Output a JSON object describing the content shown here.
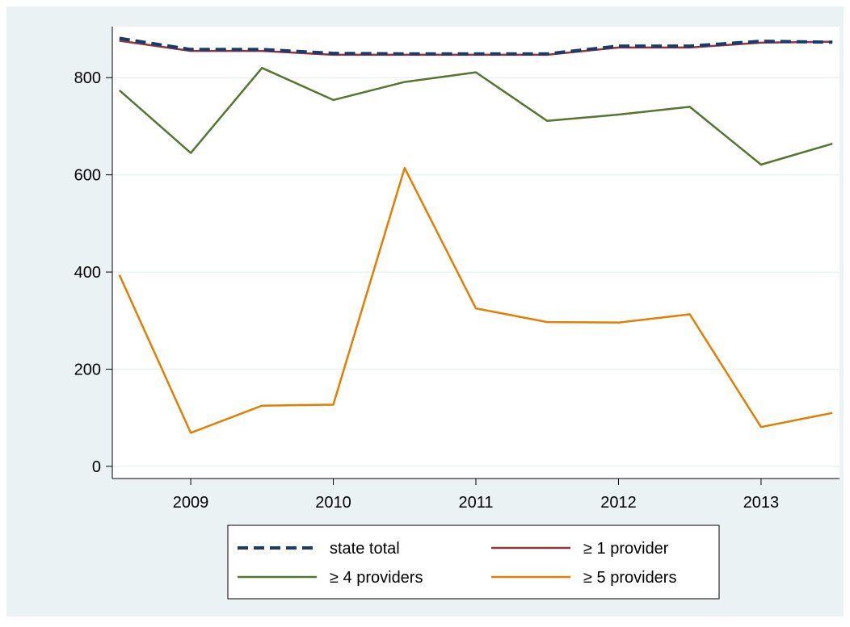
{
  "chart_data": {
    "type": "line",
    "x": [
      2008.5,
      2009.0,
      2009.5,
      2010.0,
      2010.5,
      2011.0,
      2011.5,
      2012.0,
      2012.5,
      2013.0,
      2013.5
    ],
    "xticks": [
      "2009",
      "2010",
      "2011",
      "2012",
      "2013"
    ],
    "xtick_values": [
      2009,
      2010,
      2011,
      2012,
      2013
    ],
    "xlim": [
      2008.45,
      2013.55
    ],
    "yticks": [
      "0",
      "200",
      "400",
      "600",
      "800"
    ],
    "ytick_values": [
      0,
      200,
      400,
      600,
      800
    ],
    "ylim": [
      -25,
      905
    ],
    "grid": "horizontal",
    "legend_position": "bottom",
    "series": [
      {
        "name": "state total",
        "color": "#1a3a6b",
        "style": "dashed",
        "values": [
          881,
          858,
          858,
          850,
          849,
          849,
          849,
          865,
          865,
          875,
          873
        ]
      },
      {
        "name": "≥ 1 provider",
        "color": "#90353b",
        "style": "solid",
        "values": [
          876,
          855,
          855,
          847,
          847,
          847,
          847,
          862,
          862,
          872,
          874
        ]
      },
      {
        "name": "≥ 4 providers",
        "color": "#55752f",
        "style": "solid",
        "values": [
          774,
          645,
          820,
          754,
          791,
          811,
          711,
          724,
          740,
          621,
          664
        ]
      },
      {
        "name": "≥ 5 providers",
        "color": "#e37e00",
        "style": "solid",
        "values": [
          394,
          69,
          125,
          127,
          614,
          325,
          297,
          296,
          313,
          81,
          110
        ]
      }
    ]
  }
}
